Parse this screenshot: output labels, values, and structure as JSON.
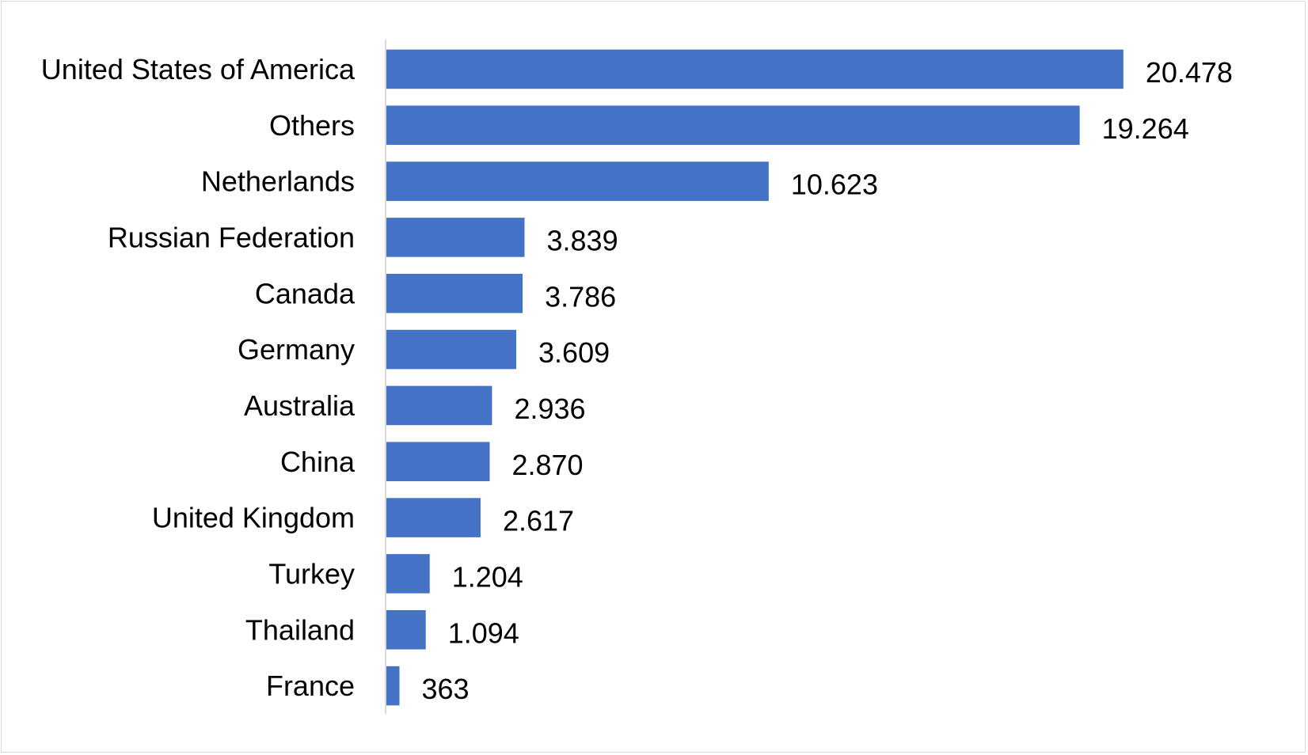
{
  "chart_data": {
    "type": "bar",
    "orientation": "horizontal",
    "title": "",
    "xlabel": "",
    "ylabel": "",
    "categories": [
      "United States of America",
      "Others",
      "Netherlands",
      "Russian Federation",
      "Canada",
      "Germany",
      "Australia",
      "China",
      "United Kingdom",
      "Turkey",
      "Thailand",
      "France"
    ],
    "values": [
      20478,
      19264,
      10623,
      3839,
      3786,
      3609,
      2936,
      2870,
      2617,
      1204,
      1094,
      363
    ],
    "value_labels": [
      "20.478",
      "19.264",
      "10.623",
      "3.839",
      "3.786",
      "3.609",
      "2.936",
      "2.870",
      "2.617",
      "1.204",
      "1.094",
      "363"
    ],
    "xlim": [
      0,
      22000
    ],
    "grid": false,
    "legend": "none",
    "bar_color": "#4472c4",
    "axis_color": "#d9d9d9"
  }
}
